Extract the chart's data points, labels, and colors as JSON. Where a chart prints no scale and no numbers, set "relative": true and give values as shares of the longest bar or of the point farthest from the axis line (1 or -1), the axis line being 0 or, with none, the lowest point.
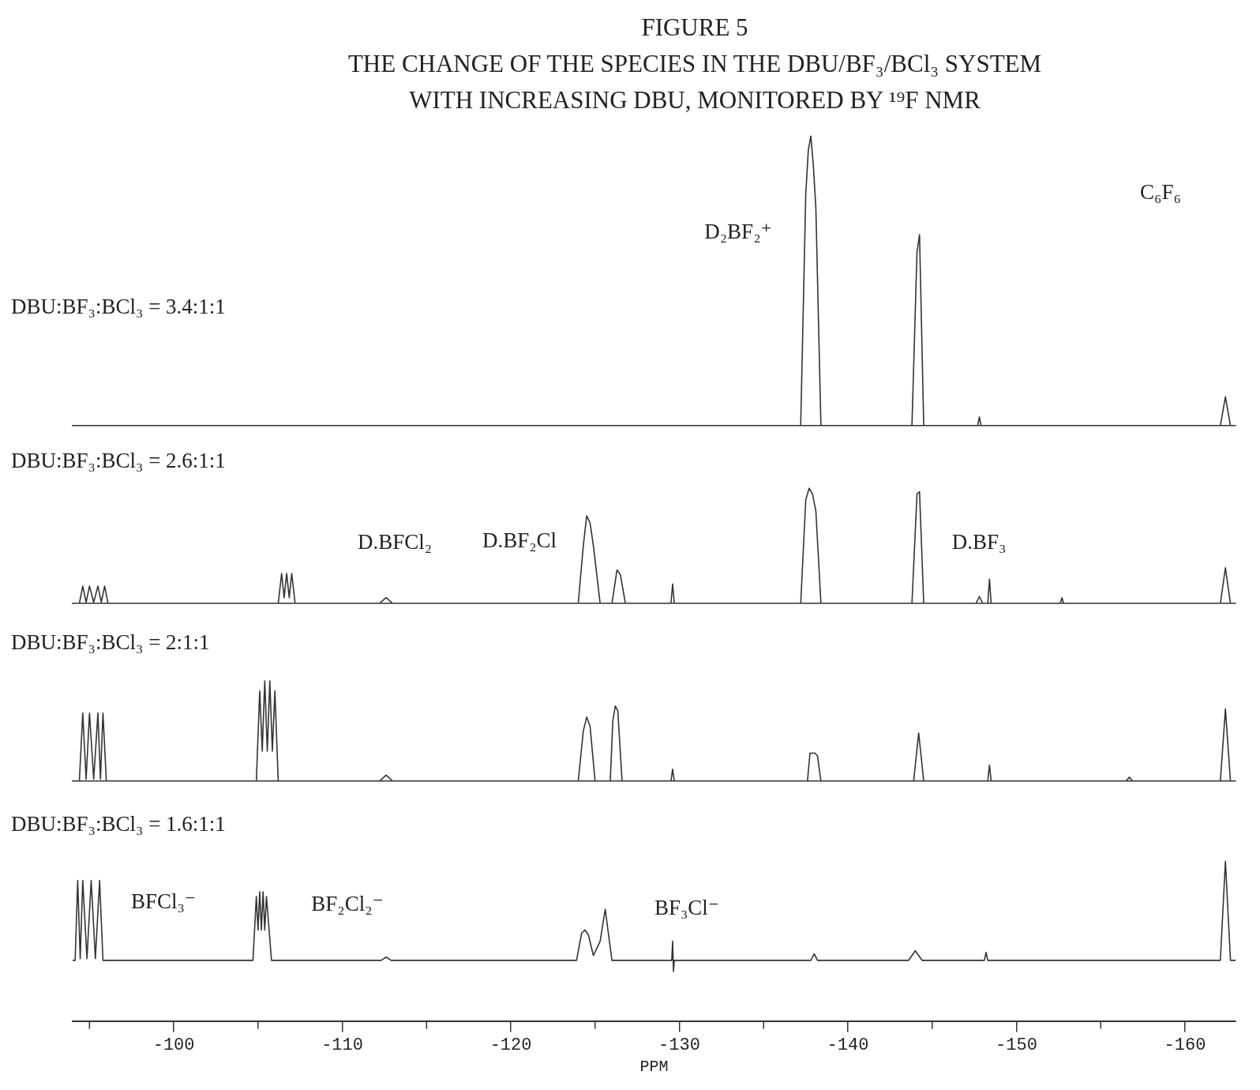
{
  "chart_data": [
    {
      "type": "line",
      "title": "FIGURE 5",
      "subtitle": "THE CHANGE OF THE SPECIES IN THE DBU/BF₃/BCl₃ SYSTEM\nWITH INCREASING DBU, MONITORED BY ¹⁹F NMR",
      "relative": true,
      "color": "#333333",
      "marker": "none",
      "tick_labels": false,
      "xlim": [
        -94,
        -163
      ],
      "x": [
        -94,
        -130,
        -137.2,
        -137.5,
        -137.65,
        -137.8,
        -137.95,
        -138.1,
        -138.4,
        -143.8,
        -144.1,
        -144.25,
        -144.5,
        -147.7,
        -147.8,
        -147.9,
        -162.1,
        -162.4,
        -162.7,
        -163
      ],
      "values": [
        0,
        0,
        0,
        0.8,
        0.95,
        1,
        0.9,
        0.75,
        0,
        0,
        0.6,
        0.66,
        0,
        0,
        0.03,
        0,
        0,
        0.1,
        0,
        0
      ],
      "annotations": [
        "DBU:BF₃:BCl₃ = 3.4:1:1",
        "D₂BF₂⁺",
        "C₆F₆"
      ]
    },
    {
      "type": "line",
      "relative": true,
      "color": "#333333",
      "marker": "none",
      "tick_labels": false,
      "xlim": [
        -94,
        -163
      ],
      "x": [
        -94,
        -94.4,
        -94.6,
        -94.8,
        -95.0,
        -95.25,
        -95.5,
        -95.7,
        -95.9,
        -96.1,
        -106.2,
        -106.4,
        -106.55,
        -106.7,
        -106.85,
        -107.0,
        -107.2,
        -112.2,
        -112.6,
        -113.0,
        -124.0,
        -124.3,
        -124.5,
        -124.7,
        -124.9,
        -125.3,
        -126.0,
        -126.3,
        -126.5,
        -126.8,
        -129.5,
        -129.6,
        -129.7,
        -137.2,
        -137.5,
        -137.7,
        -137.9,
        -138.1,
        -138.4,
        -143.8,
        -144.1,
        -144.25,
        -144.5,
        -147.6,
        -147.8,
        -148.0,
        -148.3,
        -148.4,
        -148.5,
        -152.6,
        -152.7,
        -152.8,
        -162.1,
        -162.4,
        -162.7,
        -163
      ],
      "values": [
        0,
        0,
        0.15,
        0.01,
        0.15,
        0.01,
        0.15,
        0.01,
        0.15,
        0,
        0,
        0.26,
        0.05,
        0.26,
        0.05,
        0.26,
        0,
        0,
        0.05,
        0,
        0,
        0.5,
        0.76,
        0.7,
        0.5,
        0,
        0,
        0.29,
        0.25,
        0,
        0,
        0.17,
        0,
        0,
        0.9,
        1,
        0.95,
        0.8,
        0,
        0,
        0.95,
        0.97,
        0,
        0,
        0.06,
        0,
        0,
        0.21,
        0,
        0,
        0.05,
        0,
        0,
        0.31,
        0,
        0
      ],
      "annotations": [
        "DBU:BF₃:BCl₃ = 2.6:1:1",
        "D.BFCl₂",
        "D.BF₂Cl",
        "D.BF₃"
      ]
    },
    {
      "type": "line",
      "relative": true,
      "color": "#333333",
      "marker": "none",
      "tick_labels": false,
      "xlim": [
        -94,
        -163
      ],
      "x": [
        -94,
        -94.4,
        -94.6,
        -94.8,
        -95.0,
        -95.25,
        -95.5,
        -95.65,
        -95.8,
        -96.0,
        -104.9,
        -105.1,
        -105.25,
        -105.4,
        -105.55,
        -105.7,
        -105.85,
        -106.0,
        -106.2,
        -112.2,
        -112.6,
        -113.0,
        -124.0,
        -124.3,
        -124.5,
        -124.7,
        -125.0,
        -125.9,
        -126.05,
        -126.2,
        -126.35,
        -126.6,
        -129.5,
        -129.6,
        -129.7,
        -137.6,
        -137.75,
        -137.9,
        -138.05,
        -138.2,
        -138.4,
        -143.9,
        -144.2,
        -144.5,
        -148.3,
        -148.4,
        -148.5,
        -156.5,
        -156.7,
        -156.9,
        -162.1,
        -162.4,
        -162.7,
        -163
      ],
      "values": [
        0,
        0,
        0.68,
        0.02,
        0.68,
        0.02,
        0.68,
        0.02,
        0.68,
        0,
        0,
        0.9,
        0.3,
        1,
        0.3,
        1,
        0.3,
        0.9,
        0,
        0,
        0.06,
        0,
        0,
        0.5,
        0.64,
        0.55,
        0,
        0,
        0.6,
        0.75,
        0.7,
        0,
        0,
        0.12,
        0,
        0,
        0.28,
        0.28,
        0.28,
        0.25,
        0,
        0,
        0.48,
        0,
        0,
        0.16,
        0,
        0,
        0.04,
        0,
        0,
        0.72,
        0,
        0
      ],
      "annotations": [
        "DBU:BF₃:BCl₃ = 2:1:1"
      ]
    },
    {
      "type": "line",
      "relative": true,
      "color": "#333333",
      "marker": "none",
      "tick_labels": "x",
      "xlim": [
        -94,
        -163
      ],
      "xlabel": "PPM",
      "xticks": [
        -100,
        -110,
        -120,
        -130,
        -140,
        -150,
        -160
      ],
      "x": [
        -94,
        -94.15,
        -94.3,
        -94.45,
        -94.6,
        -94.85,
        -95.1,
        -95.35,
        -95.6,
        -95.8,
        -104.7,
        -104.9,
        -105.0,
        -105.1,
        -105.2,
        -105.3,
        -105.4,
        -105.5,
        -105.8,
        -112.3,
        -112.6,
        -112.9,
        -123.9,
        -124.2,
        -124.4,
        -124.6,
        -124.9,
        -125.3,
        -125.6,
        -126.0,
        -129.55,
        -129.6,
        -129.65,
        -129.7,
        -137.8,
        -138.0,
        -138.2,
        -143.6,
        -144.0,
        -144.4,
        -148.1,
        -148.2,
        -148.3,
        -162.1,
        -162.4,
        -162.7,
        -163
      ],
      "values": [
        0.38,
        0.38,
        0.88,
        0.39,
        0.88,
        0.39,
        0.88,
        0.39,
        0.88,
        0.38,
        0.38,
        0.78,
        0.57,
        0.81,
        0.57,
        0.81,
        0.57,
        0.78,
        0.38,
        0.38,
        0.4,
        0.38,
        0.38,
        0.55,
        0.57,
        0.54,
        0.41,
        0.5,
        0.7,
        0.38,
        0.38,
        0.5,
        0.31,
        0.38,
        0.38,
        0.42,
        0.38,
        0.38,
        0.44,
        0.38,
        0.38,
        0.43,
        0.38,
        0.38,
        1,
        0.38,
        0.38
      ],
      "annotations": [
        "DBU:BF₃:BCl₃ = 1.6:1:1",
        "BFCl₃⁻",
        "BF₂Cl₂⁻",
        "BF₃Cl⁻"
      ]
    }
  ]
}
